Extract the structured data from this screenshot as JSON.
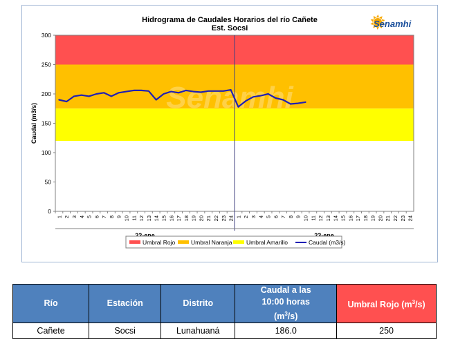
{
  "brand": {
    "name": "Senamhi"
  },
  "chart_data": {
    "type": "line",
    "title": "Hidrograma de Caudales Horarios del río Cañete",
    "subtitle": "Est. Socsi",
    "ylabel": "Caudal  (m3/s)",
    "ylim": [
      0,
      300
    ],
    "yticks": [
      "0",
      "50",
      "100",
      "150",
      "200",
      "250",
      "300"
    ],
    "day_labels": [
      "22-ene",
      "23-ene"
    ],
    "hour_labels": [
      "1",
      "2",
      "3",
      "4",
      "5",
      "6",
      "7",
      "8",
      "9",
      "10",
      "11",
      "12",
      "13",
      "14",
      "15",
      "16",
      "17",
      "18",
      "19",
      "20",
      "21",
      "22",
      "23",
      "24"
    ],
    "bands": [
      {
        "name": "Umbral Rojo",
        "from": 250,
        "to": 300,
        "color": "#ff5050"
      },
      {
        "name": "Umbral Naranja",
        "from": 175,
        "to": 250,
        "color": "#ffc000"
      },
      {
        "name": "Umbral Amarillo",
        "from": 120,
        "to": 175,
        "color": "#ffff00"
      }
    ],
    "series": [
      {
        "name": "Caudal (m3/s)",
        "color": "#1f1fb4",
        "values": [
          190,
          187,
          196,
          198,
          196,
          200,
          202,
          196,
          202,
          204,
          206,
          206,
          205,
          190,
          200,
          204,
          202,
          206,
          204,
          203,
          205,
          205,
          205,
          207,
          178,
          188,
          195,
          197,
          200,
          193,
          190,
          183,
          184,
          186
        ]
      }
    ],
    "legend_position": "bottom"
  },
  "table": {
    "headers": {
      "rio": "Río",
      "estacion": "Estación",
      "distrito": "Distrito",
      "caudal_line1": "Caudal a las",
      "caudal_line2": "10:00 horas",
      "caudal_unit": "(m",
      "caudal_sup": "3",
      "caudal_unit_end": "/s)",
      "umbral": "Umbral Rojo (m",
      "umbral_sup": "3",
      "umbral_end": "/s)"
    },
    "row": {
      "rio": "Cañete",
      "estacion": "Socsi",
      "distrito": "Lunahuaná",
      "caudal": "186.0",
      "umbral": "250"
    }
  }
}
